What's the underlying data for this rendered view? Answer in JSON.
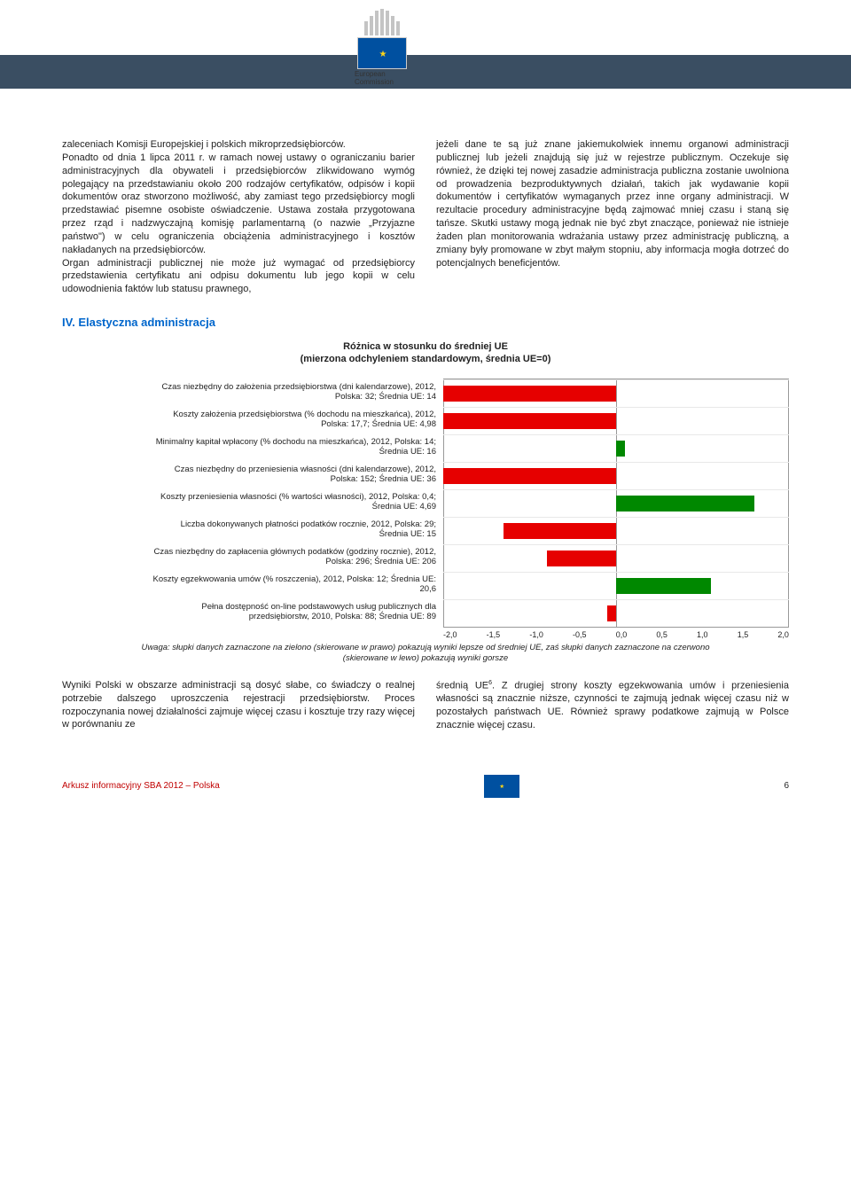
{
  "header": {
    "org1": "European",
    "org2": "Commission"
  },
  "col1": {
    "p1": "zaleceniach Komisji Europejskiej i polskich mikroprzedsiębiorców.",
    "p2": "Ponadto od dnia 1 lipca 2011 r. w ramach nowej ustawy o ograniczaniu barier administracyjnych dla obywateli i przedsiębiorców zlikwidowano wymóg polegający na przedstawianiu około 200 rodzajów certyfikatów, odpisów i kopii dokumentów oraz stworzono możliwość, aby zamiast tego przedsiębiorcy mogli przedstawiać pisemne osobiste oświadczenie. Ustawa została przygotowana przez rząd i nadzwyczajną komisję parlamentarną (o nazwie „Przyjazne państwo\") w celu ograniczenia obciążenia administracyjnego i kosztów nakładanych na przedsiębiorców.",
    "p3": "Organ administracji publicznej nie może już wymagać od przedsiębiorcy przedstawienia certyfikatu ani odpisu dokumentu lub jego kopii w celu udowodnienia faktów lub statusu prawnego,"
  },
  "col2": {
    "p1": "jeżeli dane te są już znane jakiemukolwiek innemu organowi administracji publicznej lub jeżeli znajdują się już w rejestrze publicznym. Oczekuje się również, że dzięki tej nowej zasadzie administracja publiczna zostanie uwolniona od prowadzenia bezproduktywnych działań, takich jak wydawanie kopii dokumentów i certyfikatów wymaganych przez inne organy administracji. W rezultacie procedury administracyjne będą zajmować mniej czasu i staną się tańsze. Skutki ustawy mogą jednak nie być zbyt znaczące, ponieważ nie istnieje żaden plan monitorowania wdrażania ustawy przez administrację publiczną, a zmiany były promowane w zbyt małym stopniu, aby informacja mogła dotrzeć do potencjalnych beneficjentów."
  },
  "section": "IV. Elastyczna administracja",
  "chart": {
    "title": "Różnica w stosunku do średniej UE",
    "subtitle": "(mierzona odchyleniem standardowym, średnia UE=0)",
    "note1": "Uwaga: słupki danych zaznaczone na zielono (skierowane w prawo) pokazują wyniki lepsze od średniej UE, zaś słupki danych zaznaczone na czerwono",
    "note2": "(skierowane w lewo) pokazują wyniki gorsze",
    "min": -2.0,
    "max": 2.0,
    "ticks": [
      "-2,0",
      "-1,5",
      "-1,0",
      "-0,5",
      "0,0",
      "0,5",
      "1,0",
      "1,5",
      "2,0"
    ],
    "items": [
      {
        "label": "Czas niezbędny do założenia przedsiębiorstwa (dni kalendarzowe), 2012,",
        "sub": "Polska: 32; Średnia UE: 14",
        "value": -2.0,
        "color": "r"
      },
      {
        "label": "Koszty założenia przedsiębiorstwa (% dochodu na mieszkańca), 2012,",
        "sub": "Polska: 17,7; Średnia UE: 4,98",
        "value": -2.0,
        "color": "r"
      },
      {
        "label": "Minimalny kapitał wpłacony (% dochodu na mieszkańca), 2012, Polska: 14;",
        "sub": "Średnia UE: 16",
        "value": 0.1,
        "color": "g"
      },
      {
        "label": "Czas niezbędny do przeniesienia własności (dni kalendarzowe), 2012,",
        "sub": "Polska: 152; Średnia UE: 36",
        "value": -2.0,
        "color": "r"
      },
      {
        "label": "Koszty przeniesienia własności (% wartości własności), 2012, Polska: 0,4;",
        "sub": "Średnia UE: 4,69",
        "value": 1.6,
        "color": "g"
      },
      {
        "label": "Liczba dokonywanych płatności podatków rocznie, 2012, Polska: 29;",
        "sub": "Średnia UE: 15",
        "value": -1.3,
        "color": "r"
      },
      {
        "label": "Czas niezbędny do zapłacenia głównych podatków (godziny rocznie), 2012,",
        "sub": "Polska: 296; Średnia UE: 206",
        "value": -0.8,
        "color": "r"
      },
      {
        "label": "Koszty egzekwowania umów (% roszczenia), 2012, Polska: 12; Średnia UE:",
        "sub": "20,6",
        "value": 1.1,
        "color": "g"
      },
      {
        "label": "Pełna dostępność on-line podstawowych usług publicznych dla",
        "sub": "przedsiębiorstw, 2010, Polska: 88; Średnia UE: 89",
        "value": -0.1,
        "color": "r"
      }
    ]
  },
  "col1b": {
    "p1": "Wyniki Polski w obszarze administracji są dosyć słabe, co świadczy o realnej potrzebie dalszego uproszczenia rejestracji przedsiębiorstw. Proces rozpoczynania nowej działalności zajmuje więcej czasu i kosztuje trzy razy więcej w porównaniu ze"
  },
  "col2b": {
    "p1_a": "średnią UE",
    "p1_sup": "6",
    "p1_b": ". Z drugiej strony koszty egzekwowania umów i przeniesienia własności są znacznie niższe, czynności te zajmują jednak więcej czasu niż w pozostałych państwach UE. Również sprawy podatkowe zajmują w Polsce znacznie więcej czasu."
  },
  "footer": {
    "left": "Arkusz informacyjny SBA 2012 – Polska",
    "page": "6"
  }
}
